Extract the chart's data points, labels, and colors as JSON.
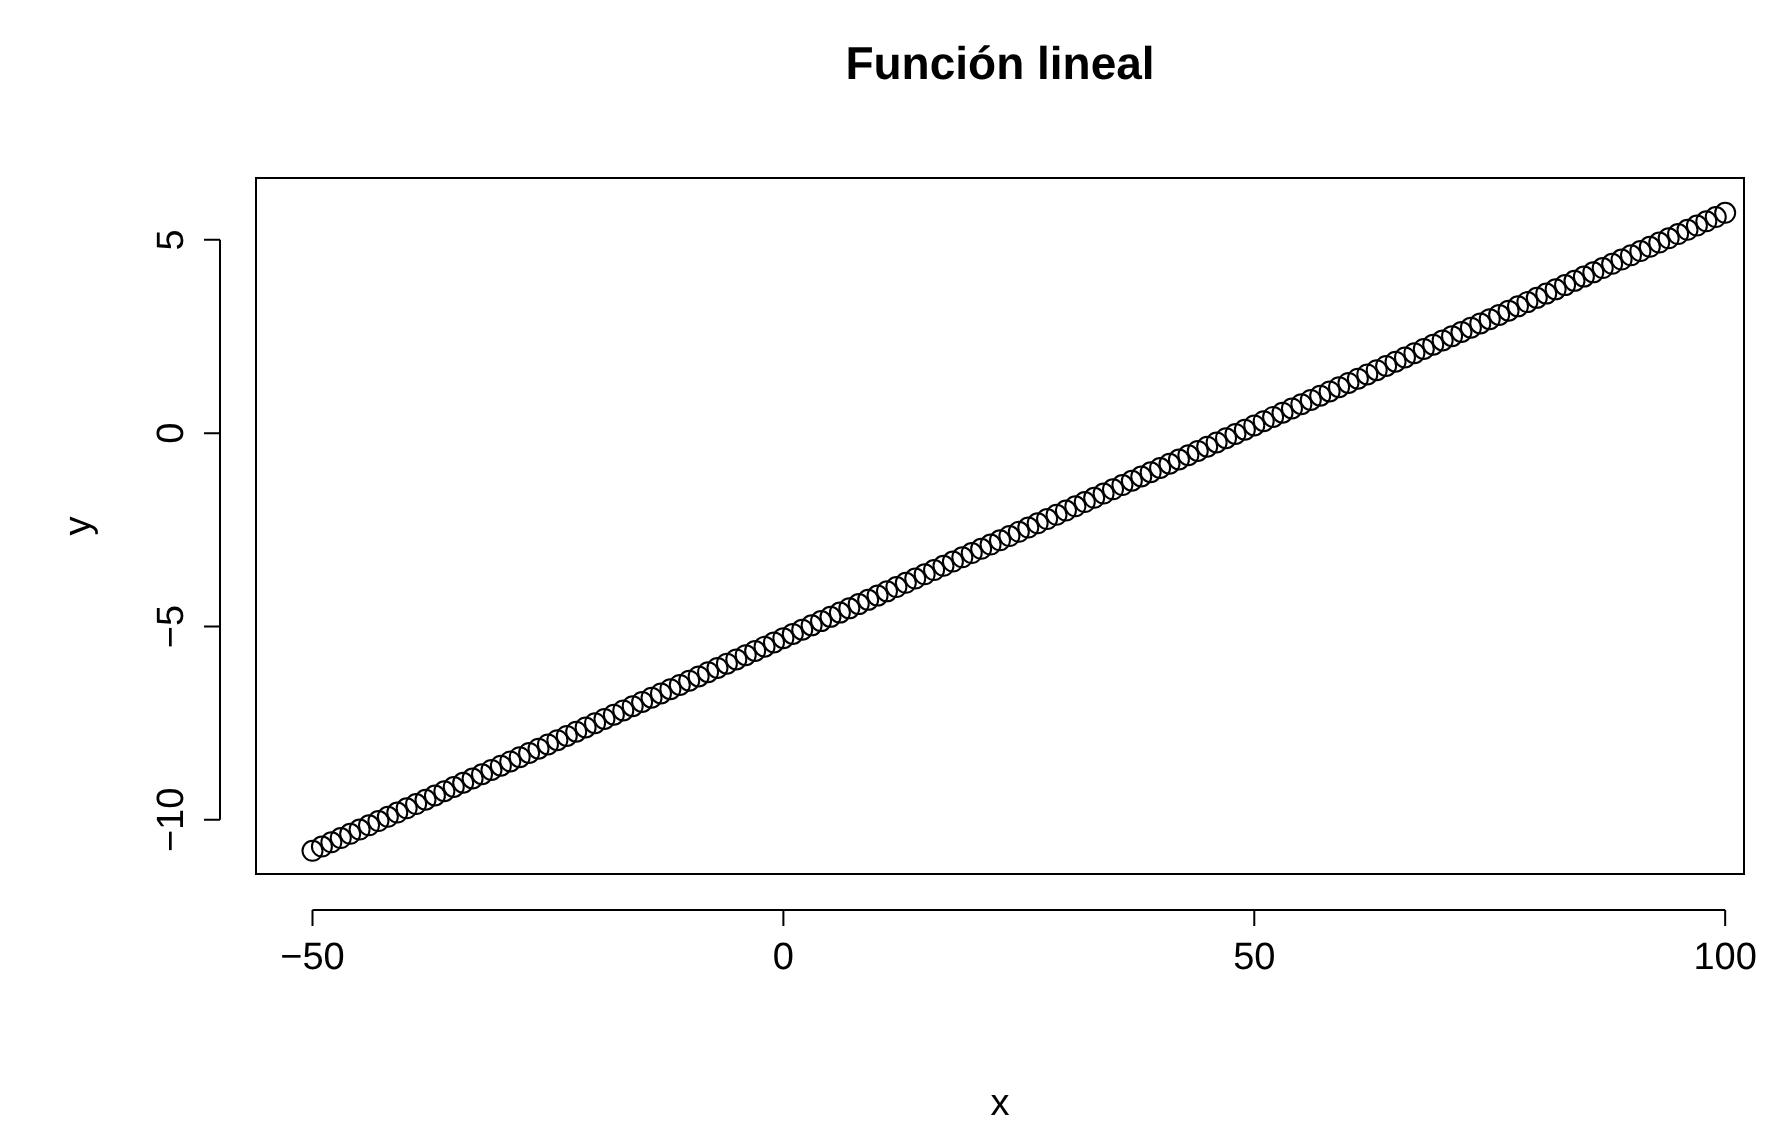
{
  "chart_data": {
    "type": "scatter",
    "title": "Función lineal",
    "xlabel": "x",
    "ylabel": "y",
    "marker": "circle",
    "legend": false,
    "xlim": [
      -56,
      102
    ],
    "ylim": [
      -11.4,
      6.6
    ],
    "xticks": [
      -50,
      0,
      50,
      100
    ],
    "yticks": [
      -10,
      -5,
      0,
      5
    ],
    "series": [
      {
        "color": "#000000",
        "x": [
          -50,
          -49,
          -48,
          -47,
          -46,
          -45,
          -44,
          -43,
          -42,
          -41,
          -40,
          -39,
          -38,
          -37,
          -36,
          -35,
          -34,
          -33,
          -32,
          -31,
          -30,
          -29,
          -28,
          -27,
          -26,
          -25,
          -24,
          -23,
          -22,
          -21,
          -20,
          -19,
          -18,
          -17,
          -16,
          -15,
          -14,
          -13,
          -12,
          -11,
          -10,
          -9,
          -8,
          -7,
          -6,
          -5,
          -4,
          -3,
          -2,
          -1,
          0,
          1,
          2,
          3,
          4,
          5,
          6,
          7,
          8,
          9,
          10,
          11,
          12,
          13,
          14,
          15,
          16,
          17,
          18,
          19,
          20,
          21,
          22,
          23,
          24,
          25,
          26,
          27,
          28,
          29,
          30,
          31,
          32,
          33,
          34,
          35,
          36,
          37,
          38,
          39,
          40,
          41,
          42,
          43,
          44,
          45,
          46,
          47,
          48,
          49,
          50,
          51,
          52,
          53,
          54,
          55,
          56,
          57,
          58,
          59,
          60,
          61,
          62,
          63,
          64,
          65,
          66,
          67,
          68,
          69,
          70,
          71,
          72,
          73,
          74,
          75,
          76,
          77,
          78,
          79,
          80,
          81,
          82,
          83,
          84,
          85,
          86,
          87,
          88,
          89,
          90,
          91,
          92,
          93,
          94,
          95,
          96,
          97,
          98,
          99,
          100
        ],
        "values": [
          -10.8,
          -10.69,
          -10.58,
          -10.47,
          -10.36,
          -10.25,
          -10.14,
          -10.03,
          -9.92,
          -9.81,
          -9.7,
          -9.59,
          -9.48,
          -9.37,
          -9.26,
          -9.15,
          -9.04,
          -8.93,
          -8.82,
          -8.71,
          -8.6,
          -8.49,
          -8.38,
          -8.27,
          -8.16,
          -8.05,
          -7.94,
          -7.83,
          -7.72,
          -7.61,
          -7.5,
          -7.39,
          -7.28,
          -7.17,
          -7.06,
          -6.95,
          -6.84,
          -6.73,
          -6.62,
          -6.51,
          -6.4,
          -6.29,
          -6.18,
          -6.07,
          -5.96,
          -5.85,
          -5.74,
          -5.63,
          -5.52,
          -5.41,
          -5.3,
          -5.19,
          -5.08,
          -4.97,
          -4.86,
          -4.75,
          -4.64,
          -4.53,
          -4.42,
          -4.31,
          -4.2,
          -4.09,
          -3.98,
          -3.87,
          -3.76,
          -3.65,
          -3.54,
          -3.43,
          -3.32,
          -3.21,
          -3.1,
          -2.99,
          -2.88,
          -2.77,
          -2.66,
          -2.55,
          -2.44,
          -2.33,
          -2.22,
          -2.11,
          -2,
          -1.89,
          -1.78,
          -1.67,
          -1.56,
          -1.45,
          -1.34,
          -1.23,
          -1.12,
          -1.01,
          -0.9,
          -0.79,
          -0.68,
          -0.57,
          -0.46,
          -0.35,
          -0.24,
          -0.13,
          -0.02,
          0.09,
          0.2,
          0.31,
          0.42,
          0.53,
          0.64,
          0.75,
          0.86,
          0.97,
          1.08,
          1.19,
          1.3,
          1.41,
          1.52,
          1.63,
          1.74,
          1.85,
          1.96,
          2.07,
          2.18,
          2.29,
          2.4,
          2.51,
          2.62,
          2.73,
          2.84,
          2.95,
          3.06,
          3.17,
          3.28,
          3.39,
          3.5,
          3.61,
          3.72,
          3.83,
          3.94,
          4.05,
          4.16,
          4.27,
          4.38,
          4.49,
          4.6,
          4.71,
          4.82,
          4.93,
          5.04,
          5.15,
          5.26,
          5.37,
          5.48,
          5.59,
          5.7
        ]
      }
    ]
  }
}
